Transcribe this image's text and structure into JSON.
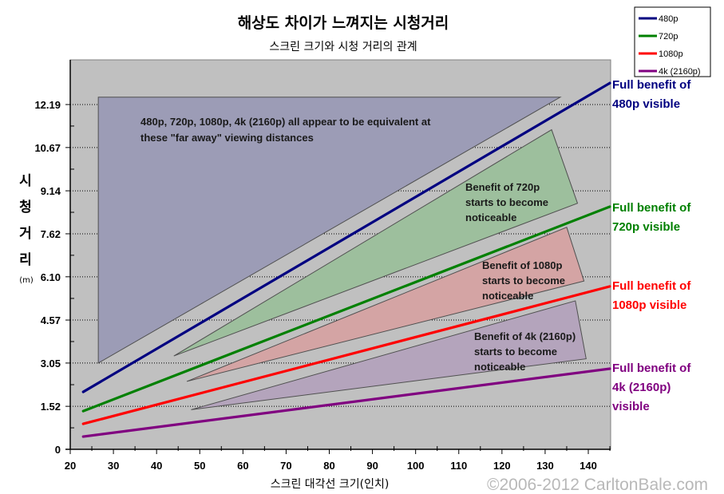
{
  "chart_data": {
    "type": "line",
    "title": "해상도 차이가 느껴지는 시청거리",
    "subtitle": "스크린 크기와 시청 거리의 관계",
    "xlabel": "스크린 대각선 크기(인치)",
    "ylabel_chars": [
      "시",
      "청",
      "거",
      "리"
    ],
    "ylabel_unit": "(m)",
    "xlim": [
      20,
      145
    ],
    "ylim": [
      0,
      13.77
    ],
    "x_ticks": [
      20,
      30,
      40,
      50,
      60,
      70,
      80,
      90,
      100,
      110,
      120,
      130,
      140
    ],
    "x_tick_labels": [
      "20",
      "30",
      "40",
      "50",
      "60",
      "70",
      "80",
      "90",
      "100",
      "110",
      "120",
      "130",
      "140"
    ],
    "y_ticks": [
      0,
      1.52,
      3.05,
      4.57,
      6.1,
      7.62,
      9.14,
      10.67,
      12.19
    ],
    "y_tick_labels": [
      "0",
      "1.52",
      "3.05",
      "4.57",
      "6.10",
      "7.62",
      "9.14",
      "10.67",
      "12.19"
    ],
    "grid": "horizontal-dotted",
    "legend_position": "top-right",
    "series": [
      {
        "name": "480p",
        "color": "#000080",
        "x": [
          23,
          145
        ],
        "y": [
          2.03,
          12.95
        ],
        "end_label": [
          "Full benefit of",
          "480p visible"
        ]
      },
      {
        "name": "720p",
        "color": "#008000",
        "x": [
          23,
          145
        ],
        "y": [
          1.35,
          8.58
        ],
        "end_label": [
          "Full benefit of",
          "720p visible"
        ]
      },
      {
        "name": "1080p",
        "color": "#ff0000",
        "x": [
          23,
          145
        ],
        "y": [
          0.9,
          5.76
        ],
        "end_label": [
          "Full benefit of",
          "1080p visible"
        ]
      },
      {
        "name": "4k (2160p)",
        "color": "#800080",
        "x": [
          23,
          145
        ],
        "y": [
          0.45,
          2.85
        ],
        "end_label": [
          "Full benefit of",
          "4k (2160p)",
          "visible"
        ]
      }
    ],
    "regions": [
      {
        "name": "far-away-region",
        "fill": "#9c9cb6",
        "points": [
          [
            26.5,
            12.45
          ],
          [
            133.5,
            12.45
          ],
          [
            26.5,
            3.05
          ]
        ],
        "text": [
          "480p, 720p, 1080p, 4k (2160p) all appear to be equivalent at",
          "these \"far away\" viewing distances"
        ]
      },
      {
        "name": "720p-benefit-region",
        "fill": "#9dbf9d",
        "points": [
          [
            44,
            3.3
          ],
          [
            131.5,
            11.3
          ],
          [
            137.5,
            8.7
          ]
        ],
        "text": [
          "Benefit of 720p",
          "starts to become",
          "noticeable"
        ]
      },
      {
        "name": "1080p-benefit-region",
        "fill": "#d4a4a4",
        "points": [
          [
            47,
            2.4
          ],
          [
            135,
            7.85
          ],
          [
            139,
            5.95
          ]
        ],
        "text": [
          "Benefit of 1080p",
          "starts to become",
          "noticeable"
        ]
      },
      {
        "name": "4k-benefit-region",
        "fill": "#b4a4bc",
        "points": [
          [
            48,
            1.4
          ],
          [
            137,
            5.25
          ],
          [
            139.5,
            3.2
          ]
        ],
        "text": [
          "Benefit of 4k (2160p)",
          "starts to become",
          "noticeable"
        ]
      }
    ]
  },
  "watermark": "©2006-2012 CarltonBale.com"
}
